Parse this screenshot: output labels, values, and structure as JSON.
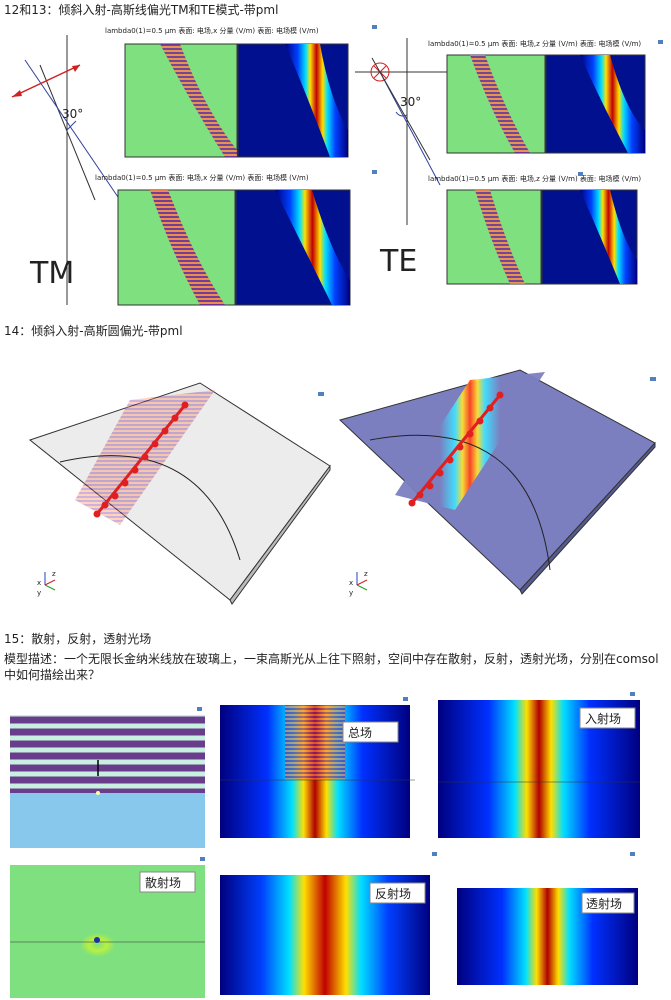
{
  "sections": [
    {
      "title": "12和13：倾斜入射-高斯线偏光TM和TE模式-带pml",
      "captions": [
        "lambda0(1)=0.5 µm 表面: 电场,x 分量 (V/m)  表面: 电场模 (V/m)",
        "lambda0(1)=0.5 µm 表面: 电场,x 分量 (V/m)  表面: 电场模 (V/m)",
        "lambda0(1)=0.5 µm 表面: 电场,z 分量 (V/m)  表面: 电场模 (V/m)",
        "lambda0(1)=0.5 µm 表面: 电场,z 分量 (V/m)  表面: 电场模 (V/m)"
      ],
      "angles": [
        "30°",
        "30°"
      ],
      "modes": [
        "TM",
        "TE"
      ]
    },
    {
      "title": "14：倾斜入射-高斯圆偏光-带pml",
      "axes": [
        "z",
        "x",
        "y"
      ]
    },
    {
      "title": "15：散射，反射，透射光场",
      "description": "模型描述：一个无限长金纳米线放在玻璃上，一束高斯光从上往下照射，空间中存在散射，反射，透射光场，分别在comsol中如何描绘出来？",
      "labels": [
        "总场",
        "入射场",
        "散射场",
        "反射场",
        "透射场"
      ]
    }
  ]
}
